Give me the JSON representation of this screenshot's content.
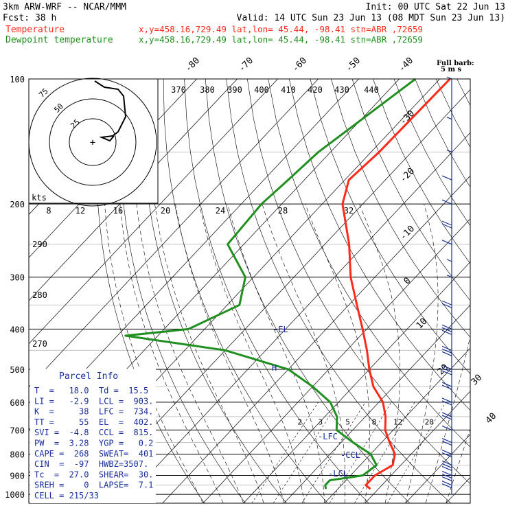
{
  "header": {
    "line1_left": "3km ARW-WRF -- NCAR/MMM",
    "line1_right": "Init: 00 UTC Sat 22 Jun 13",
    "line2_left": "Fcst:    38 h",
    "line2_right": "Valid: 14 UTC Sun 23 Jun 13 (08 MDT Sun 23 Jun 13)",
    "temp_legend": "Temperature",
    "dew_legend": "Dewpoint temperature",
    "loc_text": "x,y=458.16,729.49   lat,lon= 45.44, -98.41   stn=ABR ,72659"
  },
  "colors": {
    "temperature": "#ff2a1a",
    "dewpoint": "#1f8f1f",
    "parcel_box": "#1a2e9e",
    "wind": "#1a2e9e"
  },
  "chart_data": {
    "type": "line",
    "pressure_levels": [
      "100",
      "200",
      "300",
      "400",
      "500",
      "600",
      "700",
      "800",
      "900",
      "1000"
    ],
    "series": [
      {
        "name": "Temperature",
        "points": [
          [
            100,
            -57.5
          ],
          [
            150,
            -58
          ],
          [
            175,
            -59
          ],
          [
            200,
            -55
          ],
          [
            250,
            -44
          ],
          [
            300,
            -36
          ],
          [
            350,
            -28
          ],
          [
            400,
            -21
          ],
          [
            450,
            -15
          ],
          [
            500,
            -10
          ],
          [
            550,
            -5
          ],
          [
            600,
            1
          ],
          [
            650,
            5
          ],
          [
            700,
            8
          ],
          [
            750,
            12
          ],
          [
            800,
            16
          ],
          [
            850,
            18
          ],
          [
            900,
            16
          ],
          [
            950,
            16
          ],
          [
            970,
            18
          ]
        ]
      },
      {
        "name": "Dewpoint temperature",
        "points": [
          [
            100,
            -66
          ],
          [
            150,
            -73
          ],
          [
            175,
            -74
          ],
          [
            200,
            -75
          ],
          [
            250,
            -74
          ],
          [
            300,
            -62
          ],
          [
            350,
            -57
          ],
          [
            400,
            -64
          ],
          [
            415,
            -78
          ],
          [
            450,
            -50
          ],
          [
            500,
            -30
          ],
          [
            550,
            -20
          ],
          [
            600,
            -12
          ],
          [
            650,
            -7
          ],
          [
            700,
            -4
          ],
          [
            750,
            3
          ],
          [
            800,
            10
          ],
          [
            850,
            14
          ],
          [
            900,
            13
          ],
          [
            925,
            6
          ],
          [
            950,
            6
          ],
          [
            970,
            7
          ]
        ]
      }
    ],
    "isotherm_labels": [
      "-80",
      "-70",
      "-60",
      "-50",
      "-40",
      "-30",
      "-20",
      "-10",
      "0",
      "10",
      "20",
      "30",
      "40"
    ],
    "theta_e_labels": [
      "370",
      "380",
      "390",
      "400",
      "410",
      "420",
      "430",
      "440"
    ],
    "theta_w_labels": [
      "290",
      "280",
      "270"
    ],
    "mixing_ratio_labels": [
      "2",
      "3",
      "5",
      "8",
      "12",
      "20"
    ],
    "hodo_bottom_labels": [
      "kts",
      "8",
      "12",
      "16",
      "20",
      "24",
      "28",
      "32"
    ],
    "hodo_ring_labels": [
      "75",
      "50",
      "25"
    ],
    "markers": {
      "el": "-EL",
      "lfc": "-LFC",
      "ccl": "-CCL",
      "lcl": "-LCL",
      "h": "H"
    },
    "wind_label": "Full barb:",
    "wind_unit": "5 m s",
    "wind_barbs": [
      {
        "p": 100,
        "barbs": 1,
        "len": 0.5
      },
      {
        "p": 125,
        "barbs": 1,
        "len": 0.5
      },
      {
        "p": 150,
        "barbs": 1,
        "len": 0.5
      },
      {
        "p": 175,
        "barbs": 1,
        "len": 1
      },
      {
        "p": 200,
        "barbs": 1,
        "len": 1
      },
      {
        "p": 225,
        "barbs": 2,
        "len": 1
      },
      {
        "p": 250,
        "barbs": 1,
        "len": 1
      },
      {
        "p": 275,
        "barbs": 1,
        "len": 0.5
      },
      {
        "p": 300,
        "barbs": 1,
        "len": 0.5
      },
      {
        "p": 350,
        "barbs": 2,
        "len": 1
      },
      {
        "p": 400,
        "barbs": 3,
        "len": 1
      },
      {
        "p": 450,
        "barbs": 3,
        "len": 1
      },
      {
        "p": 500,
        "barbs": 3,
        "len": 1
      },
      {
        "p": 550,
        "barbs": 2,
        "len": 1
      },
      {
        "p": 600,
        "barbs": 2,
        "len": 1
      },
      {
        "p": 650,
        "barbs": 2,
        "len": 1
      },
      {
        "p": 700,
        "barbs": 1,
        "len": 1
      },
      {
        "p": 750,
        "barbs": 2,
        "len": 1
      },
      {
        "p": 800,
        "barbs": 2,
        "len": 1
      },
      {
        "p": 850,
        "barbs": 3,
        "len": 1
      },
      {
        "p": 900,
        "barbs": 3,
        "len": 1
      },
      {
        "p": 950,
        "barbs": 2,
        "len": 1
      }
    ]
  },
  "parcel_info": {
    "title": "Parcel Info",
    "rows": [
      "T  =   18.0  Td =  15.5",
      "LI =   -2.9  LCL =  903.",
      "K  =     38  LFC =  734.",
      "TT =     55  EL  =  402.",
      "SVI =  -4.8  CCL =  815.",
      "PW  =  3.28  YGP =   0.2",
      "CAPE =  268  SWEAT=  401",
      "CIN  =  -97  HWBZ=3507.",
      "Tc  =  27.0  SHEAR=  30.",
      "SREH =    0  LAPSE=  7.1",
      "CELL = 215/33"
    ]
  }
}
